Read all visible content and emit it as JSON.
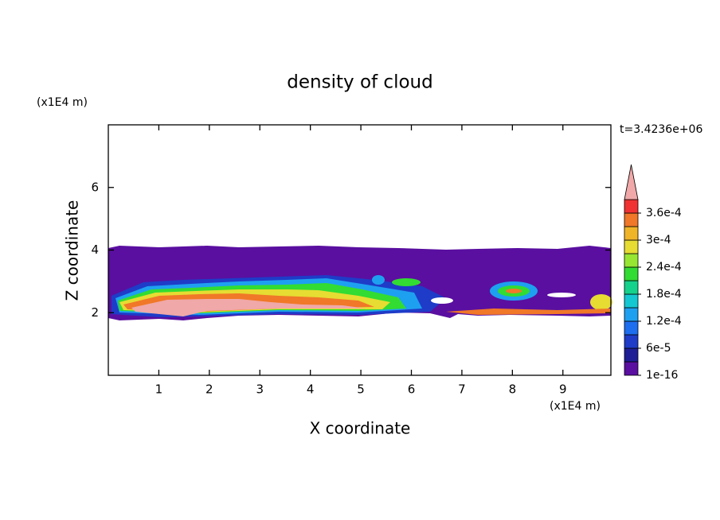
{
  "chart_data": {
    "type": "contour",
    "title": "density of cloud",
    "time_label": "t=3.4236e+06",
    "xlabel": "X coordinate",
    "ylabel": "Z coordinate",
    "x_unit": "(x1E4 m)",
    "y_unit": "(x1E4 m)",
    "xlim": [
      0,
      9.95
    ],
    "ylim": [
      0,
      8
    ],
    "xticks": [
      1,
      2,
      3,
      4,
      5,
      6,
      7,
      8,
      9
    ],
    "yticks": [
      2,
      4,
      6
    ],
    "colorbar": {
      "lim": [
        1e-16,
        0.00039
      ],
      "levels": [
        1e-16,
        3e-05,
        6e-05,
        9e-05,
        0.00012,
        0.00015,
        0.00018,
        0.00021,
        0.00024,
        0.00027,
        0.0003,
        0.00033,
        0.00036,
        0.00039
      ],
      "colors": [
        "#5a0fa0",
        "#1e1e96",
        "#1e3cc8",
        "#1e6ef0",
        "#1ea0f0",
        "#14c8d2",
        "#14d28c",
        "#32dc32",
        "#96e632",
        "#e6dc32",
        "#f0b428",
        "#f07828",
        "#f03232"
      ],
      "extend_color": "#f0a8a8",
      "ticks": [
        {
          "value": 1e-16,
          "label": "1e-16"
        },
        {
          "value": 6e-05,
          "label": "6e-5"
        },
        {
          "value": 0.00012,
          "label": "1.2e-4"
        },
        {
          "value": 0.00018,
          "label": "1.8e-4"
        },
        {
          "value": 0.00024,
          "label": "2.4e-4"
        },
        {
          "value": 0.0003,
          "label": "3e-4"
        },
        {
          "value": 0.00036,
          "label": "3.6e-4"
        }
      ]
    }
  }
}
